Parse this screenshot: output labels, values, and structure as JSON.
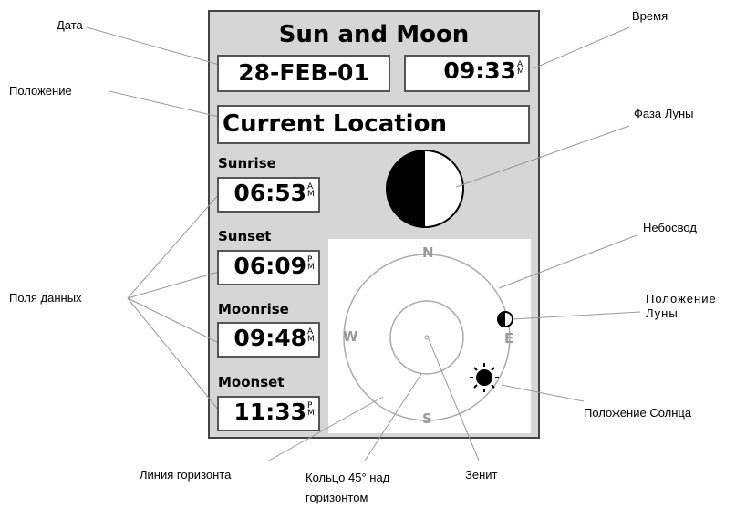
{
  "screen": {
    "title": "Sun and Moon",
    "date": "28-FEB-01",
    "time": "09:33",
    "time_ampm": "AM",
    "location": "Current Location",
    "fields": [
      {
        "label": "Sunrise",
        "time": "06:53",
        "ampm": "AM"
      },
      {
        "label": "Sunset",
        "time": "06:09",
        "ampm": "PM"
      },
      {
        "label": "Moonrise",
        "time": "09:48",
        "ampm": "AM"
      },
      {
        "label": "Moonset",
        "time": "11:33",
        "ampm": "PM"
      }
    ],
    "compass": {
      "n": "N",
      "w": "W",
      "e": "E",
      "s": "S"
    }
  },
  "callouts": [
    {
      "lines": [
        "Дата"
      ]
    },
    {
      "lines": [
        "Время"
      ]
    },
    {
      "lines": [
        "Положение"
      ]
    },
    {
      "lines": [
        "Фаза Луны"
      ]
    },
    {
      "lines": [
        "Небосвод"
      ]
    },
    {
      "lines": [
        "Положение",
        "Луны"
      ]
    },
    {
      "lines": [
        "Положение Солнца"
      ]
    },
    {
      "lines": [
        "Поля данных"
      ]
    },
    {
      "lines": [
        "Линия горизонта"
      ]
    },
    {
      "lines": [
        "Кольцо 45° над",
        "горизонтом"
      ]
    },
    {
      "lines": [
        "Зенит"
      ]
    }
  ]
}
